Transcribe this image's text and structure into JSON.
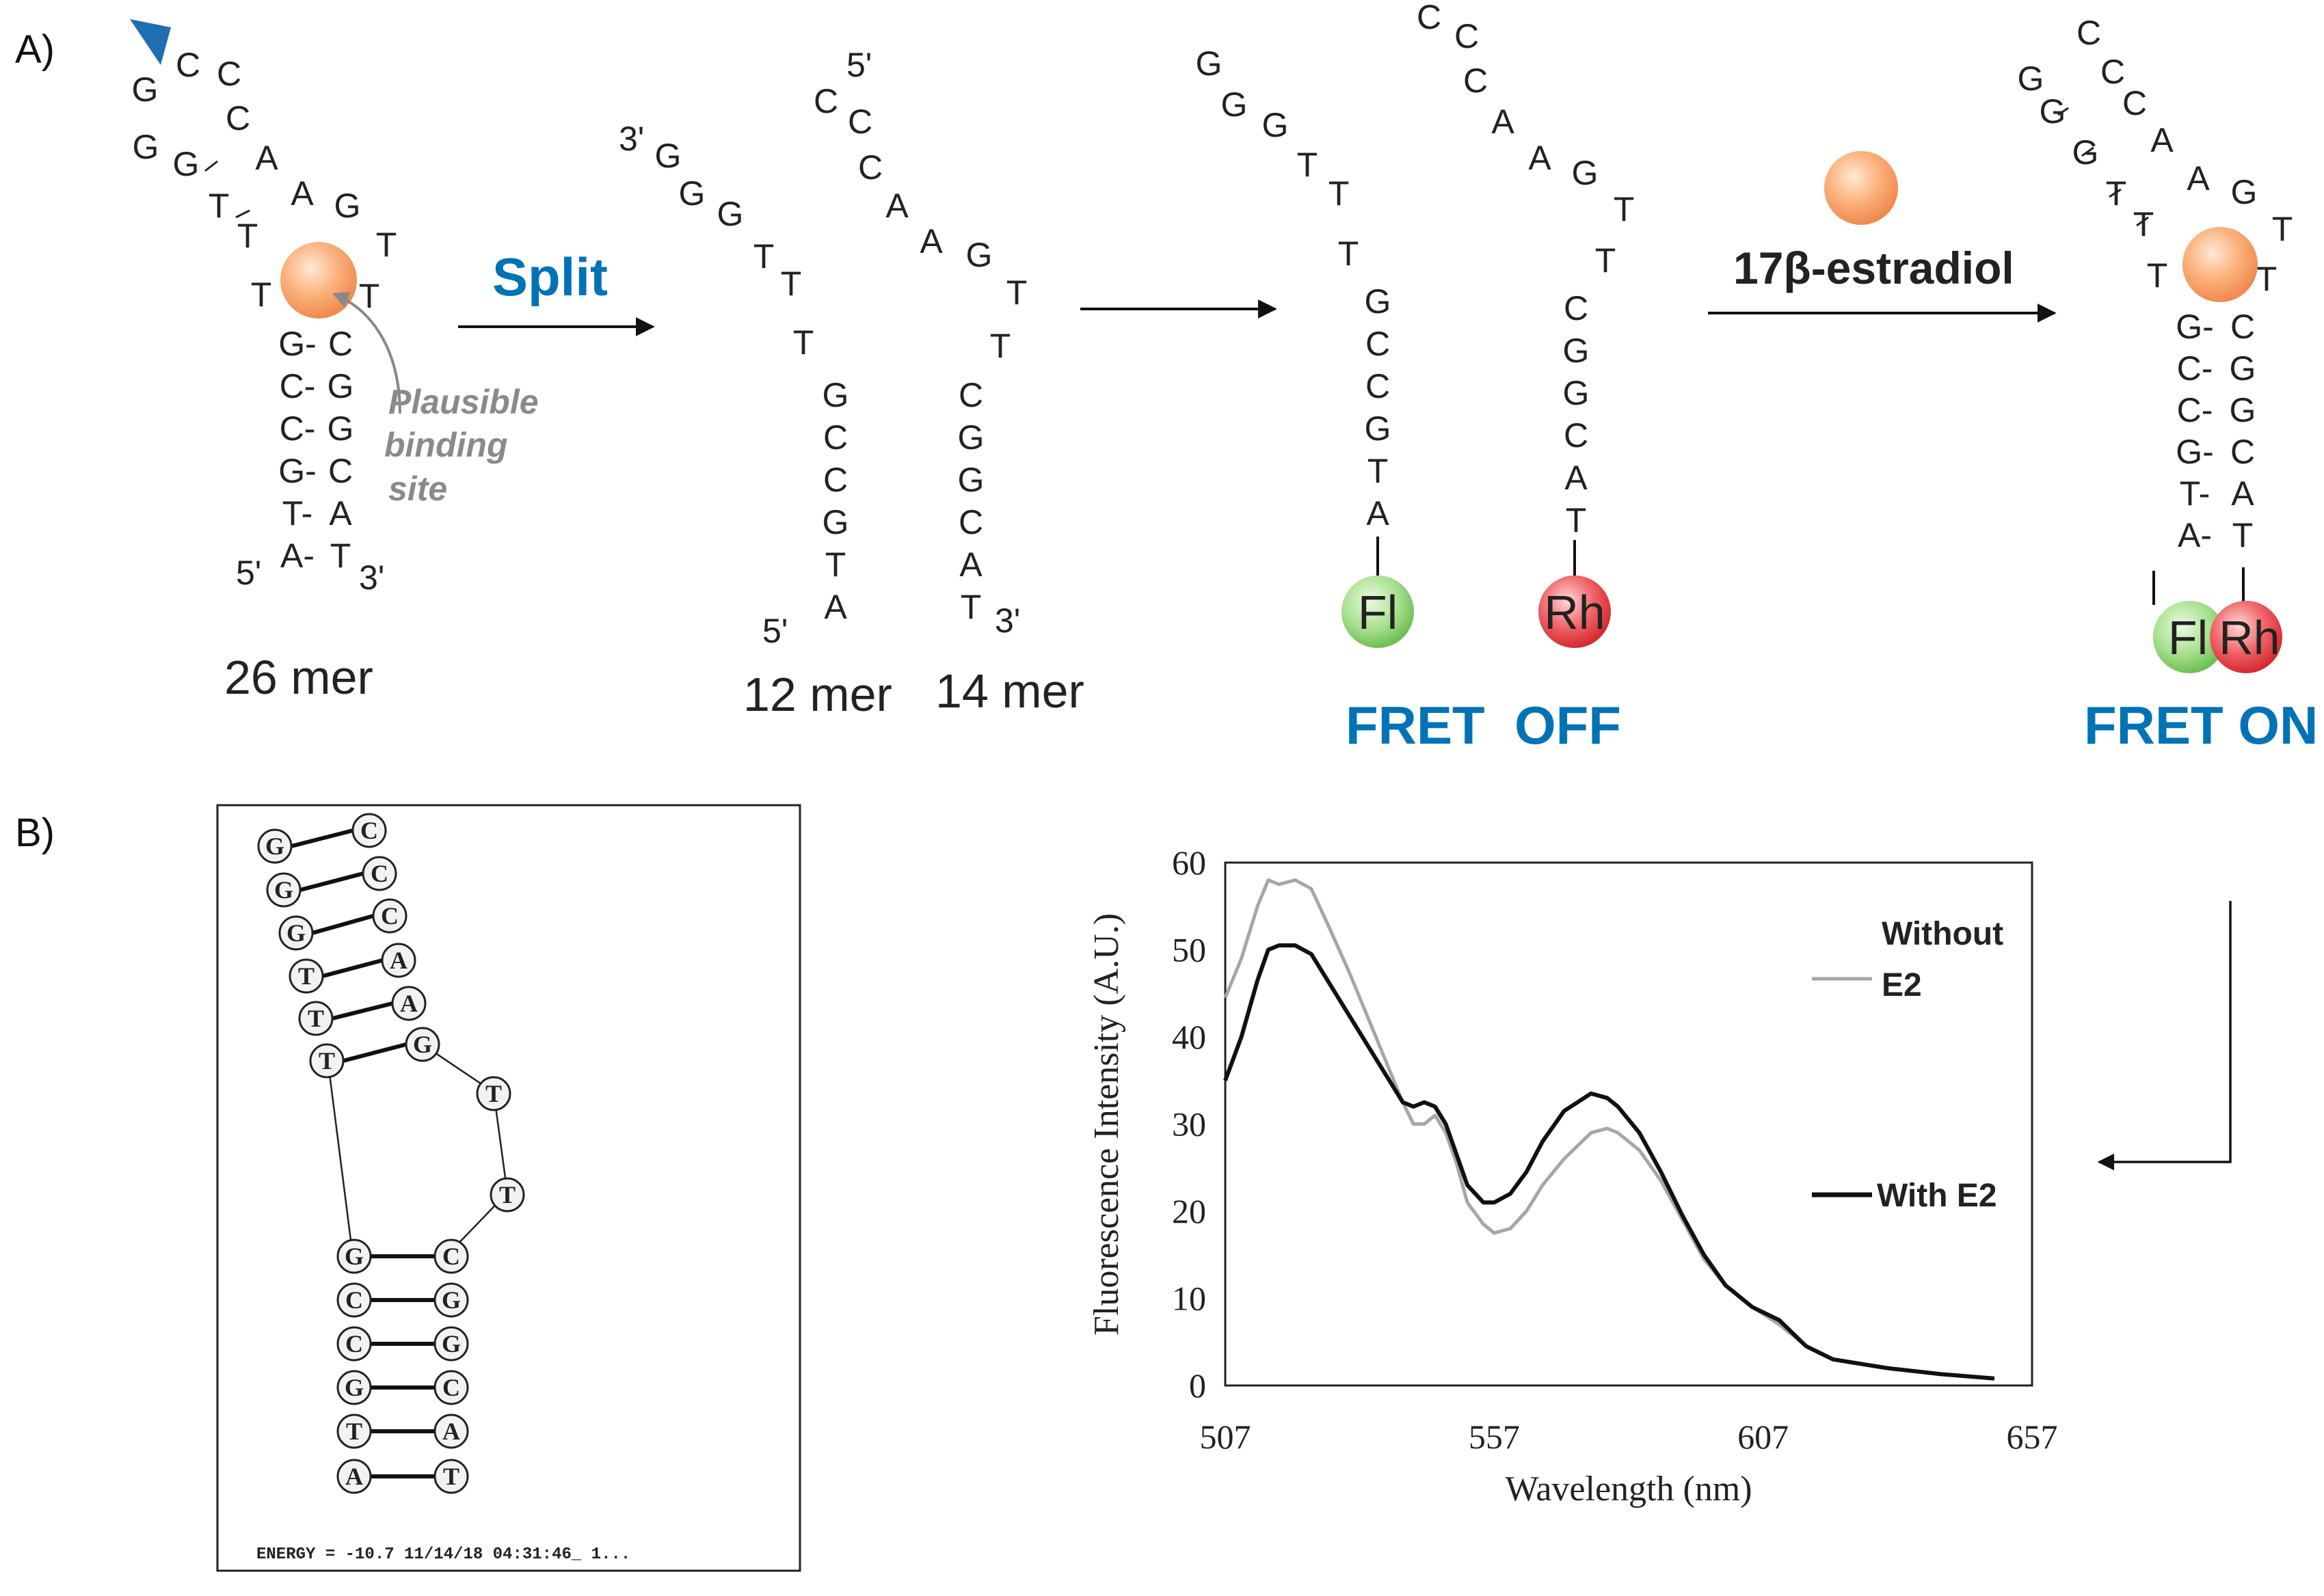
{
  "panel_a": {
    "label": "A)",
    "hairpin": {
      "loop": [
        {
          "b": "G",
          "x": 212,
          "y": 148
        },
        {
          "b": "C",
          "x": 275,
          "y": 112
        },
        {
          "b": "C",
          "x": 335,
          "y": 125
        },
        {
          "b": "C",
          "x": 348,
          "y": 190
        },
        {
          "b": "A",
          "x": 390,
          "y": 248
        },
        {
          "b": "A",
          "x": 442,
          "y": 300
        },
        {
          "b": "G",
          "x": 508,
          "y": 318
        },
        {
          "b": "T",
          "x": 565,
          "y": 375
        },
        {
          "b": "T",
          "x": 540,
          "y": 450
        },
        {
          "b": "G",
          "x": 213,
          "y": 232
        },
        {
          "b": "G",
          "x": 272,
          "y": 257
        },
        {
          "b": "T",
          "x": 320,
          "y": 318
        },
        {
          "b": "T",
          "x": 362,
          "y": 362
        },
        {
          "b": "T",
          "x": 382,
          "y": 448
        }
      ],
      "stem": [
        {
          "l": "G-",
          "r": "C"
        },
        {
          "l": "C-",
          "r": "G"
        },
        {
          "l": "C-",
          "r": "G"
        },
        {
          "l": "G-",
          "r": "C"
        },
        {
          "l": "T-",
          "r": "A"
        },
        {
          "l": "A-",
          "r": "T"
        }
      ],
      "five": "5'",
      "three": "3'",
      "mer": "26 mer",
      "site": [
        "Plausible",
        "binding",
        "site"
      ]
    },
    "split_label": "Split",
    "frag12": {
      "arm": [
        {
          "b": "G",
          "x": 977,
          "y": 245
        },
        {
          "b": "G",
          "x": 1012,
          "y": 300
        },
        {
          "b": "G",
          "x": 1068,
          "y": 330
        },
        {
          "b": "T",
          "x": 1117,
          "y": 392
        },
        {
          "b": "T",
          "x": 1157,
          "y": 432
        },
        {
          "b": "T",
          "x": 1175,
          "y": 518
        }
      ],
      "stem": [
        "G",
        "C",
        "C",
        "G",
        "T",
        "A"
      ],
      "end_top": "3'",
      "end_bottom": "5'",
      "mer": "12 mer"
    },
    "frag14": {
      "arm": [
        {
          "b": "C",
          "x": 1208,
          "y": 165
        },
        {
          "b": "C",
          "x": 1258,
          "y": 195
        },
        {
          "b": "C",
          "x": 1273,
          "y": 262
        },
        {
          "b": "A",
          "x": 1312,
          "y": 318
        },
        {
          "b": "A",
          "x": 1362,
          "y": 370
        },
        {
          "b": "G",
          "x": 1432,
          "y": 390
        },
        {
          "b": "T",
          "x": 1487,
          "y": 445
        },
        {
          "b": "T",
          "x": 1463,
          "y": 523
        }
      ],
      "stem": [
        "C",
        "G",
        "G",
        "C",
        "A",
        "T"
      ],
      "end_top": "5'",
      "end_bottom": "3'",
      "mer": "14 mer"
    },
    "fret_off": {
      "left_arm": [
        {
          "b": "G",
          "x": 1768,
          "y": 110
        },
        {
          "b": "G",
          "x": 1805,
          "y": 170
        },
        {
          "b": "G",
          "x": 1865,
          "y": 200
        },
        {
          "b": "T",
          "x": 1912,
          "y": 258
        },
        {
          "b": "T",
          "x": 1958,
          "y": 300
        },
        {
          "b": "T",
          "x": 1972,
          "y": 388
        }
      ],
      "left_stem": [
        "G",
        "C",
        "C",
        "G",
        "T",
        "A"
      ],
      "right_arm": [
        {
          "b": "C",
          "x": 2090,
          "y": 42
        },
        {
          "b": "C",
          "x": 2145,
          "y": 70
        },
        {
          "b": "C",
          "x": 2158,
          "y": 135
        },
        {
          "b": "A",
          "x": 2198,
          "y": 195
        },
        {
          "b": "A",
          "x": 2252,
          "y": 248
        },
        {
          "b": "G",
          "x": 2318,
          "y": 270
        },
        {
          "b": "T",
          "x": 2375,
          "y": 323
        },
        {
          "b": "T",
          "x": 2348,
          "y": 398
        }
      ],
      "right_stem": [
        "C",
        "G",
        "G",
        "C",
        "A",
        "T"
      ],
      "fl": "Fl",
      "rh": "Rh",
      "label": "FRET  OFF"
    },
    "ligand_label": "17β-estradiol",
    "fret_on": {
      "loop": [
        {
          "b": "G",
          "x": 2970,
          "y": 132
        },
        {
          "b": "C",
          "x": 3055,
          "y": 65
        },
        {
          "b": "C",
          "x": 3090,
          "y": 122
        },
        {
          "b": "C",
          "x": 3122,
          "y": 168
        },
        {
          "b": "A",
          "x": 3162,
          "y": 222
        },
        {
          "b": "A",
          "x": 3215,
          "y": 278
        },
        {
          "b": "G",
          "x": 3282,
          "y": 298
        },
        {
          "b": "T",
          "x": 3338,
          "y": 352
        },
        {
          "b": "T",
          "x": 3315,
          "y": 425
        },
        {
          "b": "G",
          "x": 3002,
          "y": 180
        },
        {
          "b": "G",
          "x": 3050,
          "y": 240
        },
        {
          "b": "T",
          "x": 3095,
          "y": 300
        },
        {
          "b": "T",
          "x": 3135,
          "y": 345
        },
        {
          "b": "T",
          "x": 3155,
          "y": 420
        }
      ],
      "stem": [
        {
          "l": "G-",
          "r": "C"
        },
        {
          "l": "C-",
          "r": "G"
        },
        {
          "l": "C-",
          "r": "G"
        },
        {
          "l": "G-",
          "r": "C"
        },
        {
          "l": "T-",
          "r": "A"
        },
        {
          "l": "A-",
          "r": "T"
        }
      ],
      "fl": "Fl",
      "rh": "Rh",
      "label": "FRET ON"
    }
  },
  "panel_b": {
    "label": "B)",
    "structure": {
      "pairs_top": [
        {
          "l": "G",
          "r": "C"
        },
        {
          "l": "G",
          "r": "C"
        },
        {
          "l": "G",
          "r": "C"
        },
        {
          "l": "T",
          "r": "A"
        },
        {
          "l": "T",
          "r": "A"
        },
        {
          "l": "T",
          "r": "G"
        }
      ],
      "loop": [
        "T",
        "T"
      ],
      "pairs_bottom": [
        {
          "l": "G",
          "r": "C"
        },
        {
          "l": "C",
          "r": "G"
        },
        {
          "l": "C",
          "r": "G"
        },
        {
          "l": "G",
          "r": "C"
        },
        {
          "l": "T",
          "r": "A"
        },
        {
          "l": "A",
          "r": "T"
        }
      ],
      "energy": "ENERGY = -10.7  11/14/18 04:31:46_ 1..."
    },
    "chart_data": {
      "type": "line",
      "xlabel": "Wavelength (nm)",
      "ylabel": "Fluorescence Intensity (A.U.)",
      "xlim": [
        507,
        657
      ],
      "ylim": [
        0,
        60
      ],
      "xticks": [
        507,
        557,
        607,
        657
      ],
      "yticks": [
        0,
        10,
        20,
        30,
        40,
        50,
        60
      ],
      "grid": false,
      "legend_position": "right",
      "series": [
        {
          "name": "Without E2",
          "color": "#a6a6a6",
          "x": [
            507,
            510,
            513,
            515,
            517,
            520,
            523,
            526,
            530,
            535,
            540,
            542,
            544,
            546,
            548,
            550,
            552,
            555,
            557,
            560,
            563,
            566,
            570,
            575,
            578,
            580,
            584,
            588,
            592,
            596,
            600,
            605,
            610,
            615,
            620,
            630,
            640,
            650
          ],
          "values": [
            44.5,
            49,
            55,
            58,
            57.5,
            58,
            57,
            53,
            47.5,
            40,
            32.5,
            30,
            30,
            31,
            29,
            25.5,
            21,
            18.5,
            17.5,
            18,
            20,
            23,
            26,
            29,
            29.5,
            29,
            27,
            23.5,
            19,
            14.5,
            11.5,
            9,
            7,
            4.5,
            3,
            2,
            1.3,
            0.8
          ]
        },
        {
          "name": "With E2",
          "color": "#111111",
          "x": [
            507,
            510,
            513,
            515,
            517,
            520,
            523,
            526,
            530,
            535,
            540,
            542,
            544,
            546,
            548,
            550,
            552,
            555,
            557,
            560,
            563,
            566,
            570,
            575,
            578,
            580,
            584,
            588,
            592,
            596,
            600,
            605,
            610,
            615,
            620,
            630,
            640,
            650
          ],
          "values": [
            35,
            40,
            46.5,
            50,
            50.5,
            50.5,
            49.5,
            46.5,
            42.5,
            37.5,
            32.5,
            32,
            32.5,
            32,
            30,
            26.5,
            23,
            21,
            21,
            22,
            24.5,
            28,
            31.5,
            33.5,
            33,
            32,
            29,
            24.5,
            19.5,
            15,
            11.5,
            9,
            7.5,
            4.5,
            3,
            2,
            1.3,
            0.8
          ]
        }
      ]
    }
  },
  "colors": {
    "accent_blue": "#0073b7",
    "fluorescein": "#8ed17c",
    "rhodamine": "#e8454a",
    "estradiol": "#f6a36a"
  }
}
